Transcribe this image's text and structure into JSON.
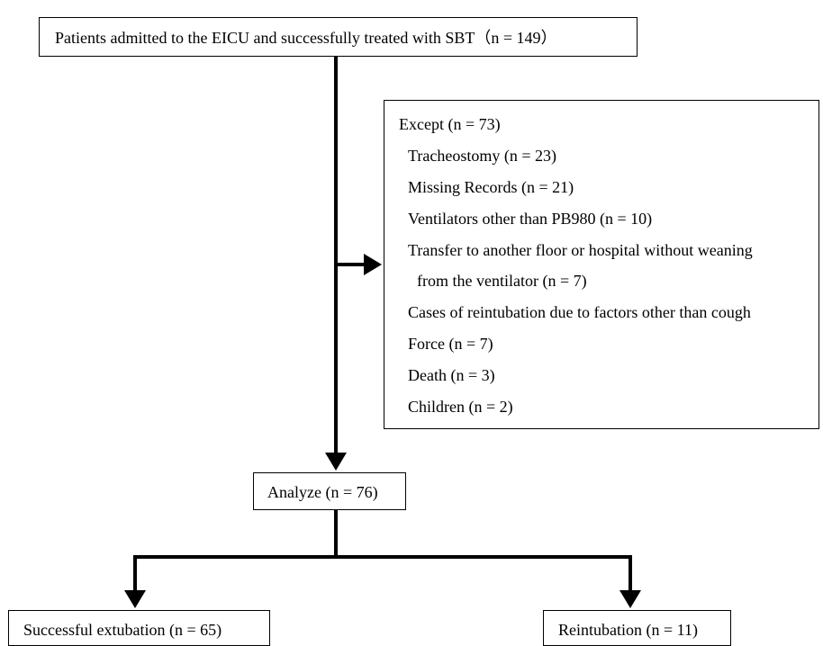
{
  "top_box": {
    "text": "Patients admitted to the EICU and successfully treated with SBT（n = 149）"
  },
  "exclusion_box": {
    "lines": [
      "Except (n = 73)",
      "Tracheostomy (n = 23)",
      "Missing Records (n = 21)",
      "Ventilators other than PB980 (n = 10)",
      "Transfer to another floor or hospital without weaning",
      "from the ventilator (n = 7)",
      "Cases of reintubation due to factors other than cough",
      "Force (n = 7)",
      "Death (n = 3)",
      "Children (n = 2)"
    ]
  },
  "analyze_box": {
    "text": "Analyze (n = 76)"
  },
  "left_box": {
    "text": "Successful extubation (n = 65)"
  },
  "right_box": {
    "text": "Reintubation (n = 11)"
  }
}
